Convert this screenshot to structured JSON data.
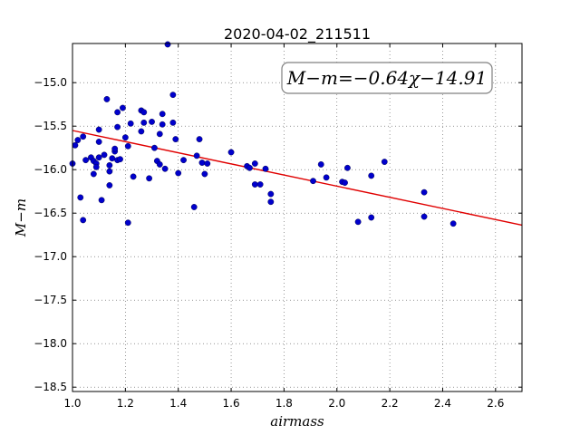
{
  "chart_data": {
    "type": "scatter",
    "title": "2020-04-02_211511",
    "xlabel": "airmass",
    "ylabel": "M−m",
    "xlim": [
      1.0,
      2.7
    ],
    "ylim": [
      -18.55,
      -14.55
    ],
    "y_inverted": true,
    "grid": true,
    "x_ticks": [
      1.0,
      1.2,
      1.4,
      1.6,
      1.8,
      2.0,
      2.2,
      2.4,
      2.6
    ],
    "x_tick_labels": [
      "1.0",
      "1.2",
      "1.4",
      "1.6",
      "1.8",
      "2.0",
      "2.2",
      "2.4",
      "2.6"
    ],
    "y_ticks": [
      -15.0,
      -15.5,
      -16.0,
      -16.5,
      -17.0,
      -17.5,
      -18.0,
      -18.5
    ],
    "y_tick_labels": [
      "−15.0",
      "−15.5",
      "−16.0",
      "−16.5",
      "−17.0",
      "−17.5",
      "−18.0",
      "−18.5"
    ],
    "annotation": "M−m=−0.64χ−14.91",
    "fit": {
      "slope": -0.64,
      "intercept": -14.91,
      "color": "#e00000"
    },
    "point_color": "#0000cc",
    "x": [
      1.0,
      1.01,
      1.02,
      1.03,
      1.04,
      1.04,
      1.05,
      1.07,
      1.08,
      1.08,
      1.09,
      1.09,
      1.1,
      1.1,
      1.1,
      1.11,
      1.12,
      1.13,
      1.14,
      1.14,
      1.14,
      1.15,
      1.16,
      1.16,
      1.17,
      1.17,
      1.17,
      1.18,
      1.19,
      1.2,
      1.21,
      1.21,
      1.22,
      1.23,
      1.26,
      1.26,
      1.27,
      1.27,
      1.29,
      1.3,
      1.31,
      1.32,
      1.33,
      1.33,
      1.34,
      1.34,
      1.35,
      1.36,
      1.38,
      1.38,
      1.39,
      1.4,
      1.42,
      1.46,
      1.47,
      1.48,
      1.49,
      1.5,
      1.51,
      1.6,
      1.66,
      1.67,
      1.69,
      1.69,
      1.71,
      1.73,
      1.75,
      1.75,
      1.91,
      1.94,
      1.96,
      2.02,
      2.03,
      2.04,
      2.08,
      2.13,
      2.13,
      2.18,
      2.33,
      2.33,
      2.44
    ],
    "y": [
      -15.93,
      -15.72,
      -15.66,
      -16.32,
      -15.62,
      -16.58,
      -15.89,
      -15.86,
      -15.9,
      -16.05,
      -15.93,
      -15.97,
      -15.54,
      -15.68,
      -15.86,
      -16.35,
      -15.83,
      -15.19,
      -16.18,
      -15.95,
      -16.02,
      -15.87,
      -15.79,
      -15.76,
      -15.51,
      -15.34,
      -15.89,
      -15.88,
      -15.29,
      -15.63,
      -16.61,
      -15.73,
      -15.47,
      -16.08,
      -15.32,
      -15.56,
      -15.34,
      -15.46,
      -16.1,
      -15.45,
      -15.75,
      -15.9,
      -15.94,
      -15.59,
      -15.36,
      -15.48,
      -15.99,
      -14.56,
      -15.14,
      -15.46,
      -15.65,
      -16.04,
      -15.89,
      -16.43,
      -15.84,
      -15.65,
      -15.92,
      -16.05,
      -15.93,
      -15.8,
      -15.96,
      -15.98,
      -16.17,
      -15.93,
      -16.17,
      -15.99,
      -16.37,
      -16.28,
      -16.13,
      -15.94,
      -16.09,
      -16.14,
      -16.15,
      -15.98,
      -16.6,
      -16.07,
      -16.55,
      -15.91,
      -16.26,
      -16.54,
      -16.62
    ]
  }
}
